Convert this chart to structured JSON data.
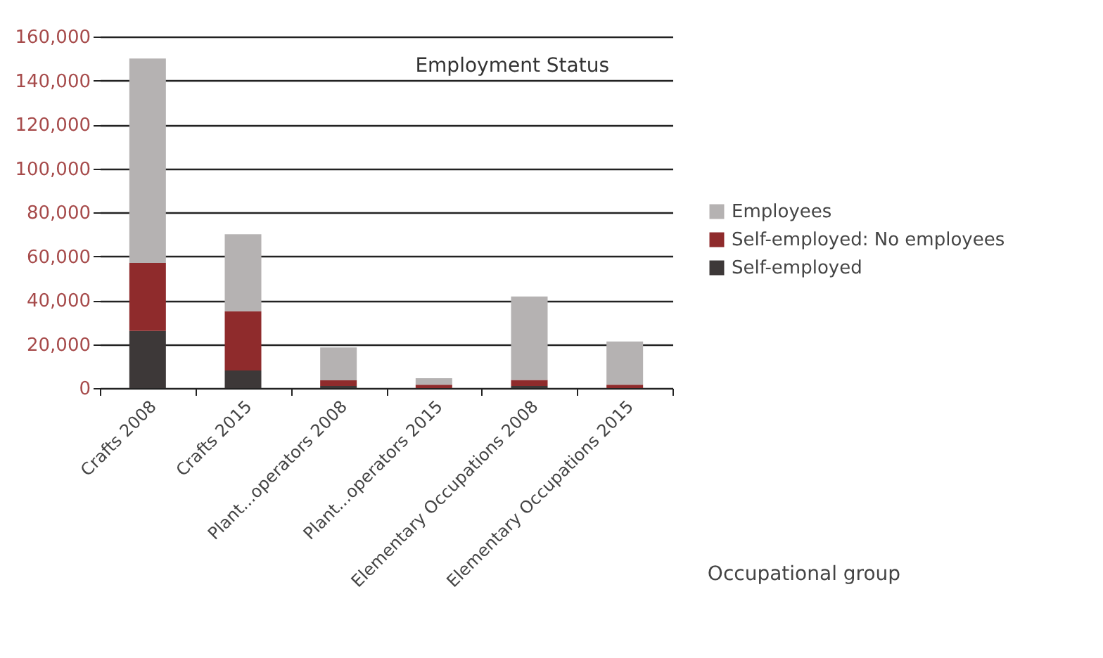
{
  "chart_data": {
    "type": "bar",
    "title": "Employment Status",
    "xlabel": "Occupational group",
    "categories": [
      "Crafts 2008",
      "Crafts 2015",
      "Plant...operators 2008",
      "Plant...operators 2015",
      "Elementary Occupations 2008",
      "Elementary Occupations 2015"
    ],
    "stacked": true,
    "series": [
      {
        "name": "Self-employed",
        "color": "#3d3838",
        "values": [
          26000,
          8000,
          1000,
          null,
          1000,
          null
        ]
      },
      {
        "name": "Self-employed: No employees",
        "color": "#8f2b2c",
        "values": [
          31000,
          27000,
          2500,
          1500,
          2700,
          1500
        ]
      },
      {
        "name": "Employees",
        "color": "#b5b2b2",
        "values": [
          93000,
          35000,
          15000,
          3000,
          38000,
          19700
        ]
      }
    ],
    "ylim": [
      0,
      160000
    ],
    "yticks": [
      0,
      {
        "value": 20000,
        "label": "20,000"
      },
      {
        "value": 40000,
        "label": "40,000"
      },
      {
        "value": 60000,
        "label": "60,000"
      },
      {
        "value": 80000,
        "label": "80,000"
      },
      {
        "value": 100000,
        "label": "100,000"
      },
      {
        "value": 120000,
        "label": "120,000"
      },
      {
        "value": 140000,
        "label": "140,000"
      },
      {
        "value": 160000,
        "label": "160,000"
      }
    ],
    "grid": "y",
    "legend": "right"
  }
}
